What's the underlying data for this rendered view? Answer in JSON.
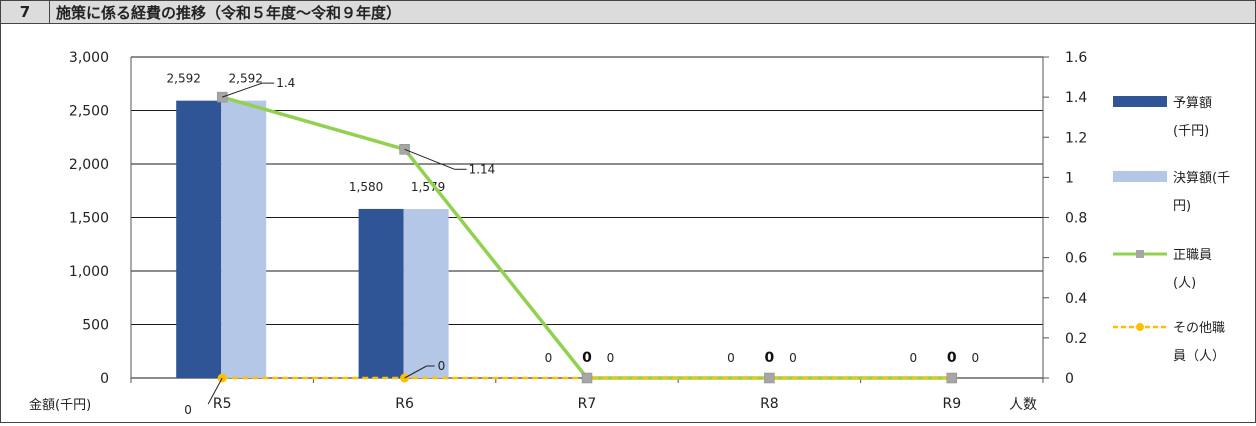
{
  "header": {
    "number": "7",
    "title": "施策に係る経費の推移（令和５年度～令和９年度）"
  },
  "colors": {
    "budget": "#2f5597",
    "settlement": "#b4c7e7",
    "regular": "#92d050",
    "other": "#ffc000",
    "marker_gray": "#a6a6a6"
  },
  "chart_data": {
    "type": "bar",
    "categories": [
      "R5",
      "R6",
      "R7",
      "R8",
      "R9"
    ],
    "y_left": {
      "label": "金額(千円)",
      "ticks": [
        "0",
        "500",
        "1,000",
        "1,500",
        "2,000",
        "2,500",
        "3,000"
      ],
      "lim": [
        0,
        3000
      ]
    },
    "y_right": {
      "label": "人数",
      "ticks": [
        "0",
        "0.2",
        "0.4",
        "0.6",
        "0.8",
        "1",
        "1.2",
        "1.4",
        "1.6"
      ],
      "lim": [
        0,
        1.6
      ]
    },
    "bar_series": [
      {
        "name": "予算額(千円)",
        "legend_lines": [
          "予算額",
          "(千円)"
        ],
        "values": [
          2592,
          1580,
          null,
          null,
          null
        ],
        "labels": [
          "2,592",
          "1,580",
          "0",
          "0",
          "0"
        ]
      },
      {
        "name": "決算額(千円)",
        "legend_lines": [
          "決算額(千",
          "円)"
        ],
        "values": [
          2592,
          1579,
          null,
          null,
          null
        ],
        "labels": [
          "2,592",
          "1,579",
          "0",
          "0",
          "0"
        ]
      }
    ],
    "line_series": [
      {
        "name": "正職員(人)",
        "legend_lines": [
          "正職員",
          "(人)"
        ],
        "values": [
          1.4,
          1.14,
          0,
          0,
          0
        ],
        "labels": [
          "1.4",
          "1.14",
          "0",
          "0",
          "0"
        ]
      },
      {
        "name": "その他職員（人）",
        "legend_lines": [
          "その他職",
          "員（人）"
        ],
        "values": [
          0,
          0,
          0,
          0,
          0
        ],
        "labels": [
          "0",
          "0",
          "",
          "",
          ""
        ]
      }
    ],
    "grid": true,
    "legend_position": "right"
  }
}
